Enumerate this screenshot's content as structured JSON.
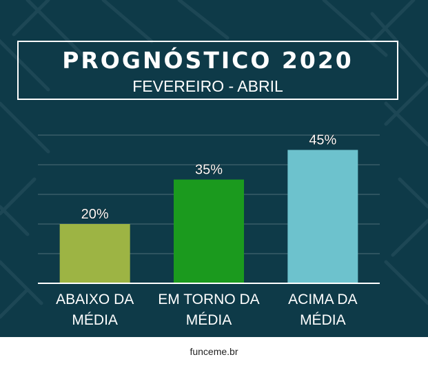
{
  "header": {
    "title": "PROGNÓSTICO 2020",
    "subtitle": "FEVEREIRO - ABRIL"
  },
  "footer": {
    "text": "funceme.br"
  },
  "colors": {
    "background": "#0e3a48",
    "gridline": "#4f6e78",
    "axis": "#ffffff",
    "text": "#ffffff"
  },
  "chart_data": {
    "type": "bar",
    "title": "PROGNÓSTICO 2020",
    "subtitle": "FEVEREIRO - ABRIL",
    "categories": [
      [
        "ABAIXO DA",
        "MÉDIA"
      ],
      [
        "EM TORNO DA",
        "MÉDIA"
      ],
      [
        "ACIMA DA",
        "MÉDIA"
      ]
    ],
    "values": [
      20,
      35,
      45
    ],
    "value_labels": [
      "20%",
      "35%",
      "45%"
    ],
    "bar_colors": [
      "#9db444",
      "#1b9a1e",
      "#6dc2cd"
    ],
    "ylim": [
      0,
      50
    ],
    "grid": true,
    "xlabel": "",
    "ylabel": ""
  }
}
